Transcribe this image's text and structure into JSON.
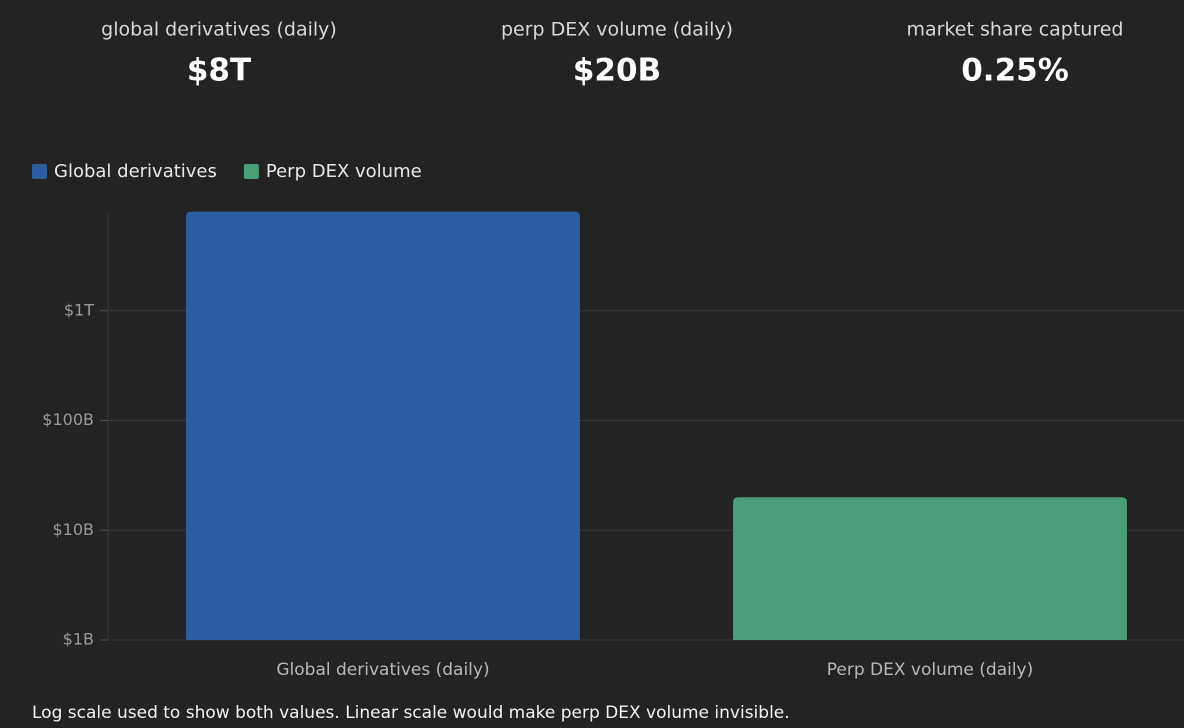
{
  "stats": [
    {
      "label": "global derivatives (daily)",
      "value": "$8T"
    },
    {
      "label": "perp DEX volume (daily)",
      "value": "$20B"
    },
    {
      "label": "market share captured",
      "value": "0.25%"
    }
  ],
  "chart_data": {
    "type": "bar",
    "categories": [
      "Global derivatives (daily)",
      "Perp DEX volume (daily)"
    ],
    "series": [
      {
        "name": "Global derivatives",
        "color": "#2d5da1",
        "values": [
          8000000000000,
          null
        ]
      },
      {
        "name": "Perp DEX volume",
        "color": "#4a9e78",
        "values": [
          null,
          20000000000
        ]
      }
    ],
    "log_scale": true,
    "ylim": [
      1000000000,
      10000000000000
    ],
    "yticks": [
      {
        "value": 1000000000,
        "label": "$1B"
      },
      {
        "value": 10000000000,
        "label": "$10B"
      },
      {
        "value": 100000000000,
        "label": "$100B"
      },
      {
        "value": 1000000000000,
        "label": "$1T"
      }
    ],
    "grid": true,
    "legend": "top-left"
  },
  "footnote": "Log scale used to show both values. Linear scale would make perp DEX volume invisible."
}
